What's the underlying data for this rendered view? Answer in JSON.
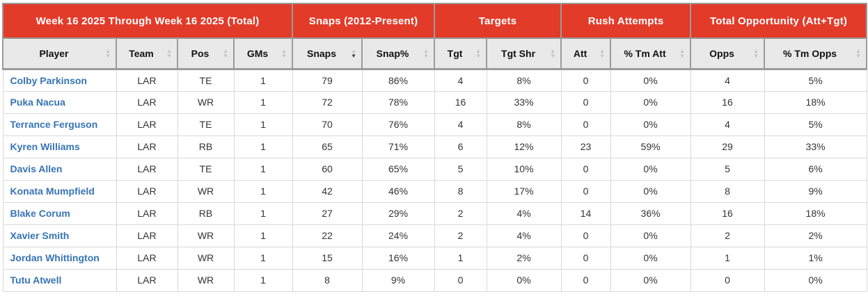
{
  "table": {
    "group_headers": [
      {
        "label": "Week 16 2025 Through Week 16 2025 (Total)",
        "span": 4
      },
      {
        "label": "Snaps (2012-Present)",
        "span": 2
      },
      {
        "label": "Targets",
        "span": 2
      },
      {
        "label": "Rush Attempts",
        "span": 2
      },
      {
        "label": "Total Opportunity (Att+Tgt)",
        "span": 2
      }
    ],
    "columns": [
      {
        "key": "player",
        "label": "Player",
        "sort": "none"
      },
      {
        "key": "team",
        "label": "Team",
        "sort": "none"
      },
      {
        "key": "pos",
        "label": "Pos",
        "sort": "none"
      },
      {
        "key": "gms",
        "label": "GMs",
        "sort": "none"
      },
      {
        "key": "snaps",
        "label": "Snaps",
        "sort": "desc"
      },
      {
        "key": "snap_pct",
        "label": "Snap%",
        "sort": "none"
      },
      {
        "key": "tgt",
        "label": "Tgt",
        "sort": "none"
      },
      {
        "key": "tgt_shr",
        "label": "Tgt Shr",
        "sort": "none"
      },
      {
        "key": "att",
        "label": "Att",
        "sort": "none"
      },
      {
        "key": "tm_att_pct",
        "label": "% Tm Att",
        "sort": "none"
      },
      {
        "key": "opps",
        "label": "Opps",
        "sort": "none"
      },
      {
        "key": "tm_opps_pct",
        "label": "% Tm Opps",
        "sort": "none"
      }
    ],
    "rows": [
      {
        "player": "Colby Parkinson",
        "team": "LAR",
        "pos": "TE",
        "gms": "1",
        "snaps": "79",
        "snap_pct": "86%",
        "tgt": "4",
        "tgt_shr": "8%",
        "att": "0",
        "tm_att_pct": "0%",
        "opps": "4",
        "tm_opps_pct": "5%"
      },
      {
        "player": "Puka Nacua",
        "team": "LAR",
        "pos": "WR",
        "gms": "1",
        "snaps": "72",
        "snap_pct": "78%",
        "tgt": "16",
        "tgt_shr": "33%",
        "att": "0",
        "tm_att_pct": "0%",
        "opps": "16",
        "tm_opps_pct": "18%"
      },
      {
        "player": "Terrance Ferguson",
        "team": "LAR",
        "pos": "TE",
        "gms": "1",
        "snaps": "70",
        "snap_pct": "76%",
        "tgt": "4",
        "tgt_shr": "8%",
        "att": "0",
        "tm_att_pct": "0%",
        "opps": "4",
        "tm_opps_pct": "5%"
      },
      {
        "player": "Kyren Williams",
        "team": "LAR",
        "pos": "RB",
        "gms": "1",
        "snaps": "65",
        "snap_pct": "71%",
        "tgt": "6",
        "tgt_shr": "12%",
        "att": "23",
        "tm_att_pct": "59%",
        "opps": "29",
        "tm_opps_pct": "33%"
      },
      {
        "player": "Davis Allen",
        "team": "LAR",
        "pos": "TE",
        "gms": "1",
        "snaps": "60",
        "snap_pct": "65%",
        "tgt": "5",
        "tgt_shr": "10%",
        "att": "0",
        "tm_att_pct": "0%",
        "opps": "5",
        "tm_opps_pct": "6%"
      },
      {
        "player": "Konata Mumpfield",
        "team": "LAR",
        "pos": "WR",
        "gms": "1",
        "snaps": "42",
        "snap_pct": "46%",
        "tgt": "8",
        "tgt_shr": "17%",
        "att": "0",
        "tm_att_pct": "0%",
        "opps": "8",
        "tm_opps_pct": "9%"
      },
      {
        "player": "Blake Corum",
        "team": "LAR",
        "pos": "RB",
        "gms": "1",
        "snaps": "27",
        "snap_pct": "29%",
        "tgt": "2",
        "tgt_shr": "4%",
        "att": "14",
        "tm_att_pct": "36%",
        "opps": "16",
        "tm_opps_pct": "18%"
      },
      {
        "player": "Xavier Smith",
        "team": "LAR",
        "pos": "WR",
        "gms": "1",
        "snaps": "22",
        "snap_pct": "24%",
        "tgt": "2",
        "tgt_shr": "4%",
        "att": "0",
        "tm_att_pct": "0%",
        "opps": "2",
        "tm_opps_pct": "2%"
      },
      {
        "player": "Jordan Whittington",
        "team": "LAR",
        "pos": "WR",
        "gms": "1",
        "snaps": "15",
        "snap_pct": "16%",
        "tgt": "1",
        "tgt_shr": "2%",
        "att": "0",
        "tm_att_pct": "0%",
        "opps": "1",
        "tm_opps_pct": "1%"
      },
      {
        "player": "Tutu Atwell",
        "team": "LAR",
        "pos": "WR",
        "gms": "1",
        "snaps": "8",
        "snap_pct": "9%",
        "tgt": "0",
        "tgt_shr": "0%",
        "att": "0",
        "tm_att_pct": "0%",
        "opps": "0",
        "tm_opps_pct": "0%"
      }
    ],
    "sort_icons": {
      "up": "▲",
      "down": "▼"
    },
    "colors": {
      "header_red": "#e23b2a",
      "header_text": "#ffffff",
      "link_blue": "#3674b5",
      "sort_arrow_inactive": "#c2c2c2",
      "sort_arrow_active": "#3a3a3a"
    }
  }
}
